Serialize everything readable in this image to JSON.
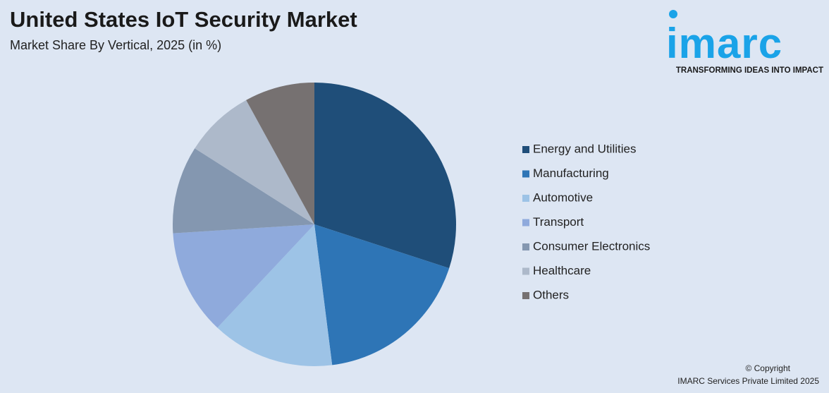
{
  "chart_data": {
    "type": "pie",
    "title": "United States IoT Security Market",
    "subtitle": "Market Share By Vertical, 2025 (in %)",
    "categories": [
      "Energy and Utilities",
      "Manufacturing",
      "Automotive",
      "Transport",
      "Consumer Electronics",
      "Healthcare",
      "Others"
    ],
    "values": [
      30,
      18,
      14,
      12,
      10,
      8,
      8
    ],
    "colors": [
      "#1f4e79",
      "#2e75b6",
      "#9dc3e6",
      "#8faadc",
      "#8497b0",
      "#adb9ca",
      "#767171"
    ],
    "legend": "right"
  },
  "logo": {
    "name": "imarc",
    "tagline": "TRANSFORMING IDEAS INTO IMPACT"
  },
  "footer": {
    "copyright": "© Copyright",
    "company": "IMARC Services Private Limited 2025"
  }
}
